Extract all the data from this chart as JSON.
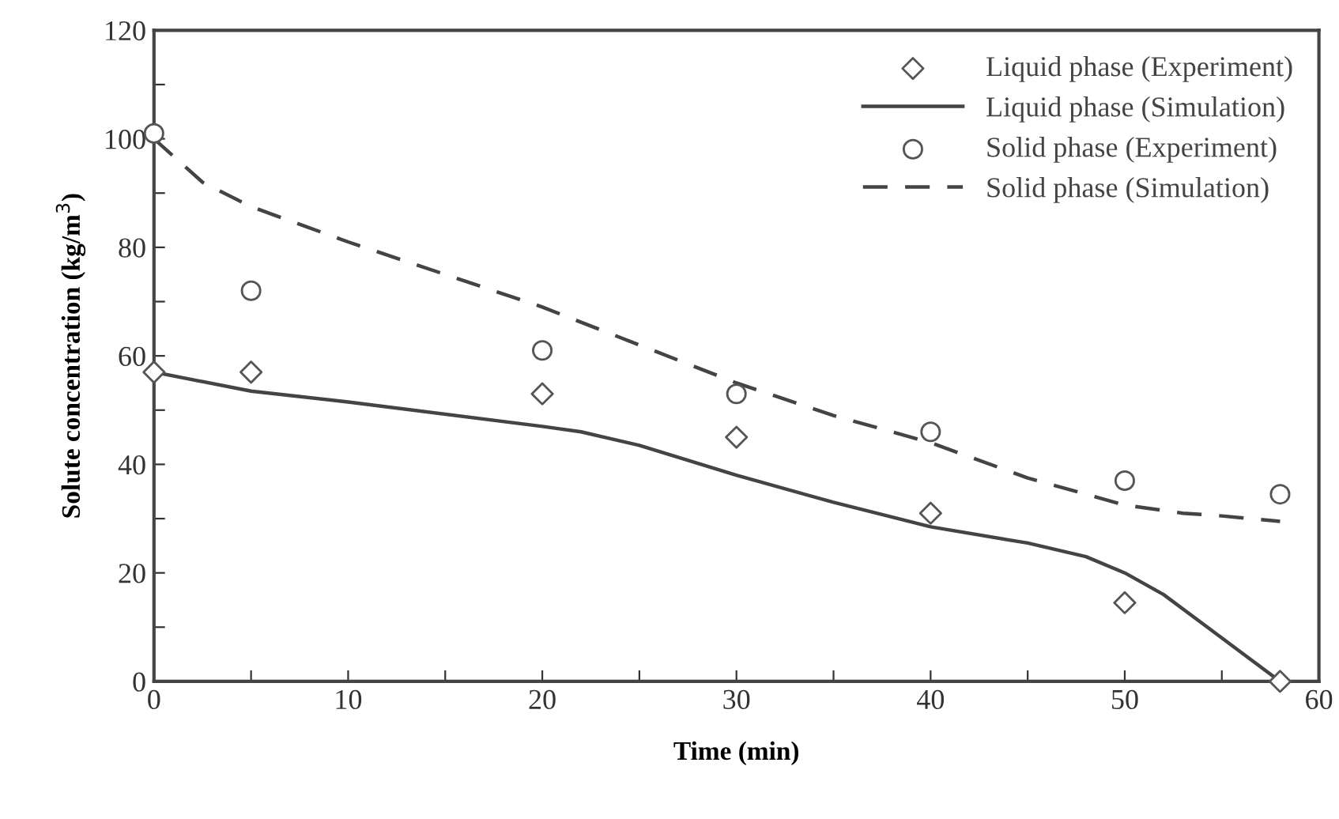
{
  "chart_data": {
    "type": "line",
    "xlabel": "Time (min)",
    "ylabel": "Solute concentration (kg/m$^{3}$)",
    "xlim": [
      0,
      60
    ],
    "ylim": [
      0,
      120
    ],
    "xticks": [
      0,
      {
        "value": 5,
        "label": null
      },
      10,
      {
        "value": 15,
        "label": null
      },
      20,
      {
        "value": 25,
        "label": null
      },
      30,
      {
        "value": 35,
        "label": null
      },
      40,
      {
        "value": 45,
        "label": null
      },
      50,
      {
        "value": 55,
        "label": null
      },
      60
    ],
    "yticks": [
      0,
      {
        "value": 10,
        "label": null
      },
      20,
      {
        "value": 30,
        "label": null
      },
      40,
      {
        "value": 50,
        "label": null
      },
      60,
      {
        "value": 70,
        "label": null
      },
      80,
      {
        "value": 90,
        "label": null
      },
      100,
      {
        "value": 110,
        "label": null
      },
      120
    ],
    "grid": false,
    "legend": "top right",
    "series": [
      {
        "name": "Liquid phase (Experiment)",
        "type": "scatter",
        "marker": "diamond",
        "color": "#555555",
        "x": [
          0,
          5,
          20,
          30,
          40,
          50,
          58
        ],
        "values": [
          57,
          57,
          53,
          45,
          31,
          14.5,
          0
        ]
      },
      {
        "name": "Liquid phase (Simulation)",
        "line_style": "solid",
        "marker": "none",
        "color": "#444444",
        "x": [
          0,
          5,
          10,
          20,
          22,
          25,
          30,
          35,
          40,
          45,
          48,
          50,
          52,
          55,
          58
        ],
        "values": [
          57,
          53.5,
          51.5,
          47,
          46,
          43.5,
          38,
          33,
          28.5,
          25.5,
          23,
          20,
          16,
          8,
          0
        ]
      },
      {
        "name": "Solid phase (Experiment)",
        "type": "scatter",
        "marker": "circle",
        "color": "#555555",
        "x": [
          0,
          5,
          20,
          30,
          40,
          50,
          58
        ],
        "values": [
          101,
          72,
          61,
          53,
          46,
          37,
          34.5
        ]
      },
      {
        "name": "Solid phase (Simulation)",
        "line_style": "dashed",
        "marker": "none",
        "color": "#444444",
        "x": [
          0,
          2.5,
          5,
          10,
          15,
          20,
          25,
          30,
          35,
          40,
          45,
          50,
          53,
          55,
          58
        ],
        "values": [
          100,
          92,
          87.5,
          81,
          75,
          69,
          62,
          55,
          49,
          44,
          37.5,
          32.5,
          31,
          30.5,
          29.5
        ]
      }
    ]
  }
}
